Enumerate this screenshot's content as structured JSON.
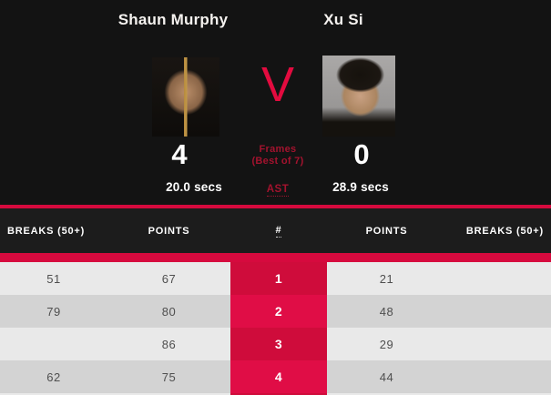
{
  "colors": {
    "accent_red": "#d60a3e",
    "frame_cell_red_odd": "#cf0c3b",
    "frame_cell_red_even": "#e00d46",
    "dark_red_text": "#a3132e",
    "background_dark": "#131313",
    "table_header_bg": "#1c1c1c",
    "row_light": "#e9e9e9",
    "row_dark": "#d3d3d3"
  },
  "scoreboard": {
    "left": {
      "name": "Shaun Murphy",
      "frames": "4",
      "shot_time": "20.0 secs"
    },
    "right": {
      "name": "Xu Si",
      "frames": "0",
      "shot_time": "28.9 secs"
    },
    "versus": "V",
    "frames_label": "Frames",
    "frames_sub": "(Best of 7)",
    "ast": "AST"
  },
  "table": {
    "headers": {
      "breaks_left": "BREAKS (50+)",
      "points_left": "POINTS",
      "frame": "#",
      "points_right": "POINTS",
      "breaks_right": "BREAKS (50+)"
    },
    "rows": [
      {
        "breaks_left": "51",
        "points_left": "67",
        "frame": "1",
        "points_right": "21",
        "breaks_right": ""
      },
      {
        "breaks_left": "79",
        "points_left": "80",
        "frame": "2",
        "points_right": "48",
        "breaks_right": ""
      },
      {
        "breaks_left": "",
        "points_left": "86",
        "frame": "3",
        "points_right": "29",
        "breaks_right": ""
      },
      {
        "breaks_left": "62",
        "points_left": "75",
        "frame": "4",
        "points_right": "44",
        "breaks_right": ""
      },
      {
        "breaks_left": "",
        "points_left": "",
        "frame": "",
        "points_right": "",
        "breaks_right": ""
      }
    ]
  }
}
